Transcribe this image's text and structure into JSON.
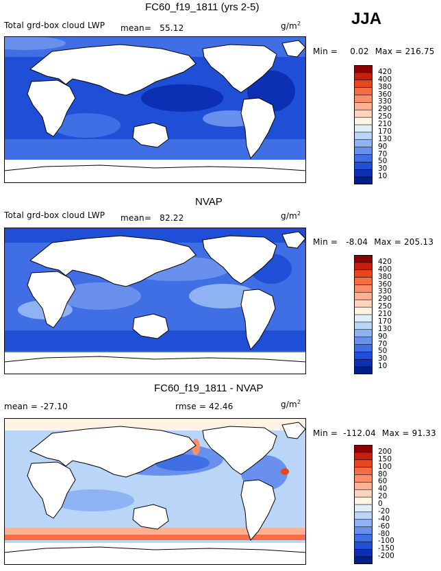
{
  "season": "JJA",
  "chart_data": [
    {
      "type": "heatmap",
      "title": "FC60_f19_1811 (yrs 2-5)",
      "subtitle": "Total grd-box cloud LWP",
      "mean_label": "mean=",
      "mean_value": "55.12",
      "units_base": "g/m",
      "units_exp": "2",
      "min_label": "Min =",
      "min_value": "0.02",
      "max_label": "Max =",
      "max_value": "216.75",
      "colorbar": {
        "levels": [
          "420",
          "400",
          "380",
          "360",
          "330",
          "290",
          "250",
          "210",
          "170",
          "130",
          "90",
          "70",
          "50",
          "30",
          "10"
        ],
        "colors": [
          "#8b0000",
          "#c81e0f",
          "#e8461e",
          "#f56c45",
          "#fa8e6b",
          "#fcb193",
          "#fdd3bb",
          "#fff3e3",
          "#e0eefc",
          "#b9d5f7",
          "#8fb2f2",
          "#6890ec",
          "#3f6ee5",
          "#1e4fd6",
          "#0d2fb3",
          "#001f8a"
        ]
      }
    },
    {
      "type": "heatmap",
      "title": "NVAP",
      "subtitle": "Total grd-box cloud LWP",
      "mean_label": "mean=",
      "mean_value": "82.22",
      "units_base": "g/m",
      "units_exp": "2",
      "min_label": "Min =",
      "min_value": "-8.04",
      "max_label": "Max =",
      "max_value": "205.13",
      "colorbar": {
        "levels": [
          "420",
          "400",
          "380",
          "360",
          "330",
          "290",
          "250",
          "210",
          "170",
          "130",
          "90",
          "70",
          "50",
          "30",
          "10"
        ],
        "colors": [
          "#8b0000",
          "#c81e0f",
          "#e8461e",
          "#f56c45",
          "#fa8e6b",
          "#fcb193",
          "#fdd3bb",
          "#fff3e3",
          "#e0eefc",
          "#b9d5f7",
          "#8fb2f2",
          "#6890ec",
          "#3f6ee5",
          "#1e4fd6",
          "#0d2fb3",
          "#001f8a"
        ]
      }
    },
    {
      "type": "heatmap",
      "title": "FC60_f19_1811 - NVAP",
      "mean_label": "mean =",
      "mean_value": "-27.10",
      "rmse_label": "rmse =",
      "rmse_value": "42.46",
      "units_base": "g/m",
      "units_exp": "2",
      "min_label": "Min =",
      "min_value": "-112.04",
      "max_label": "Max =",
      "max_value": "91.33",
      "colorbar": {
        "levels": [
          "200",
          "150",
          "100",
          "80",
          "60",
          "40",
          "20",
          "0",
          "-20",
          "-40",
          "-60",
          "-80",
          "-100",
          "-150",
          "-200"
        ],
        "colors": [
          "#8b0000",
          "#c81e0f",
          "#e8461e",
          "#f56c45",
          "#fa8e6b",
          "#fcb193",
          "#fdd3bb",
          "#fff3e3",
          "#e0eefc",
          "#b9d5f7",
          "#8fb2f2",
          "#6890ec",
          "#3f6ee5",
          "#1e4fd6",
          "#0d2fb3",
          "#001f8a"
        ]
      }
    }
  ]
}
